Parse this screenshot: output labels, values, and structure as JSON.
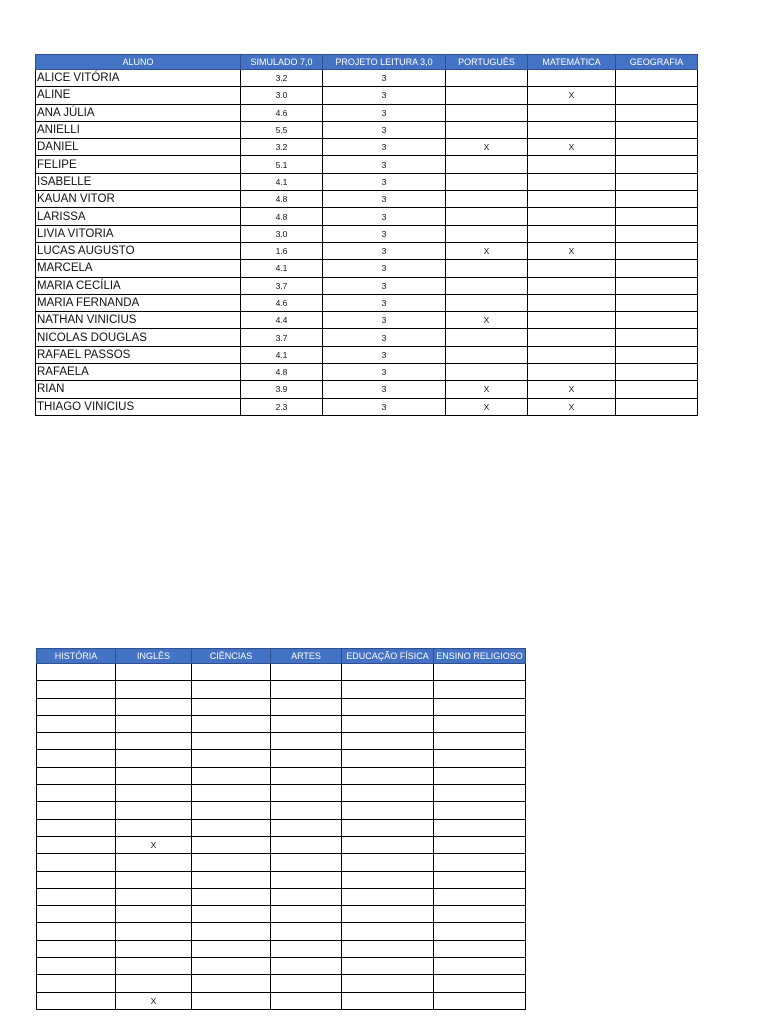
{
  "table1": {
    "headers": [
      "ALUNO",
      "SIMULADO 7,0",
      "PROJETO LEITURA  3,0",
      "PORTUGUÊS",
      "MATEMÁTICA",
      "GEOGRAFIA"
    ],
    "rows": [
      [
        "ALICE VITÓRIA",
        "3.2",
        "3",
        "",
        "",
        ""
      ],
      [
        "ALINE",
        "3.0",
        "3",
        "",
        "X",
        ""
      ],
      [
        "ANA JÚLIA",
        "4.6",
        "3",
        "",
        "",
        ""
      ],
      [
        "ANIELLI",
        "5.5",
        "3",
        "",
        "",
        ""
      ],
      [
        "DANIEL",
        "3.2",
        "3",
        "X",
        "X",
        ""
      ],
      [
        "FELIPE",
        "5.1",
        "3",
        "",
        "",
        ""
      ],
      [
        "ISABELLE",
        "4.1",
        "3",
        "",
        "",
        ""
      ],
      [
        "KAUAN VITOR",
        "4.8",
        "3",
        "",
        "",
        ""
      ],
      [
        "LARISSA",
        "4.8",
        "3",
        "",
        "",
        ""
      ],
      [
        "LIVIA VITORIA",
        "3.0",
        "3",
        "",
        "",
        ""
      ],
      [
        "LUCAS AUGUSTO",
        "1.6",
        "3",
        "X",
        "X",
        ""
      ],
      [
        "MARCELA",
        "4.1",
        "3",
        "",
        "",
        ""
      ],
      [
        "MARIA CECÍLIA",
        "3.7",
        "3",
        "",
        "",
        ""
      ],
      [
        "MARIA FERNANDA",
        "4.6",
        "3",
        "",
        "",
        ""
      ],
      [
        "NATHAN VINICIUS",
        "4.4",
        "3",
        "X",
        "",
        ""
      ],
      [
        "NICOLAS DOUGLAS",
        "3.7",
        "3",
        "",
        "",
        ""
      ],
      [
        "RAFAEL PASSOS",
        "4.1",
        "3",
        "",
        "",
        ""
      ],
      [
        "RAFAELA",
        "4.8",
        "3",
        "",
        "",
        ""
      ],
      [
        "RIAN",
        "3.9",
        "3",
        "X",
        "X",
        ""
      ],
      [
        "THIAGO VINICIUS",
        "2.3",
        "3",
        "X",
        "X",
        ""
      ]
    ]
  },
  "table2": {
    "headers": [
      "HISTÓRIA",
      "INGLÊS",
      "CIÊNCIAS",
      "ARTES",
      "EDUCAÇÃO FÍSICA",
      "ENSINO RELIGIOSO"
    ],
    "rows": [
      [
        "",
        "",
        "",
        "",
        "",
        ""
      ],
      [
        "",
        "",
        "",
        "",
        "",
        ""
      ],
      [
        "",
        "",
        "",
        "",
        "",
        ""
      ],
      [
        "",
        "",
        "",
        "",
        "",
        ""
      ],
      [
        "",
        "",
        "",
        "",
        "",
        ""
      ],
      [
        "",
        "",
        "",
        "",
        "",
        ""
      ],
      [
        "",
        "",
        "",
        "",
        "",
        ""
      ],
      [
        "",
        "",
        "",
        "",
        "",
        ""
      ],
      [
        "",
        "",
        "",
        "",
        "",
        ""
      ],
      [
        "",
        "",
        "",
        "",
        "",
        ""
      ],
      [
        "",
        "X",
        "",
        "",
        "",
        ""
      ],
      [
        "",
        "",
        "",
        "",
        "",
        ""
      ],
      [
        "",
        "",
        "",
        "",
        "",
        ""
      ],
      [
        "",
        "",
        "",
        "",
        "",
        ""
      ],
      [
        "",
        "",
        "",
        "",
        "",
        ""
      ],
      [
        "",
        "",
        "",
        "",
        "",
        ""
      ],
      [
        "",
        "",
        "",
        "",
        "",
        ""
      ],
      [
        "",
        "",
        "",
        "",
        "",
        ""
      ],
      [
        "",
        "",
        "",
        "",
        "",
        ""
      ],
      [
        "",
        "X",
        "",
        "",
        "",
        ""
      ]
    ]
  },
  "colors": {
    "header_bg": "#4472c4",
    "header_text": "#ffffff"
  }
}
